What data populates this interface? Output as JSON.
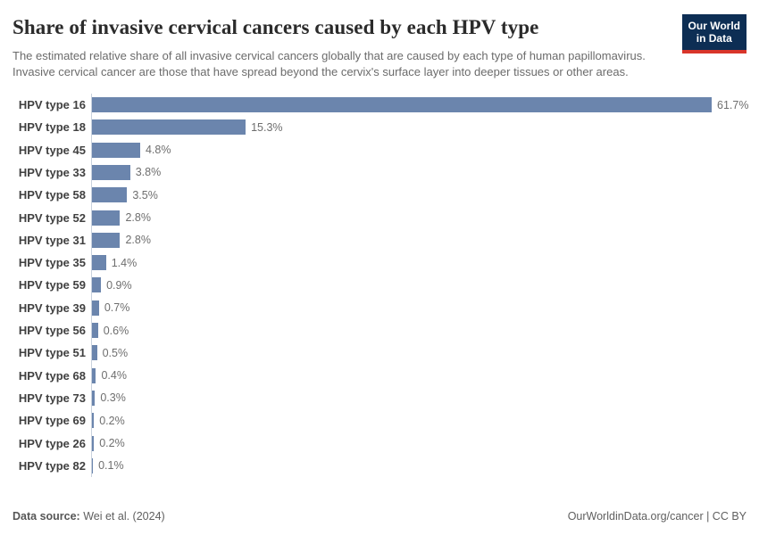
{
  "header": {
    "title": "Share of invasive cervical cancers caused by each HPV type",
    "subtitle": "The estimated relative share of all invasive cervical cancers globally that are caused by each type of human papillomavirus. Invasive cervical cancer are those that have spread beyond the cervix's surface layer into deeper tissues or other areas.",
    "logo": {
      "line1": "Our World",
      "line2": "in Data",
      "bg_color": "#0d2e54",
      "accent_color": "#d8352a"
    }
  },
  "chart_data": {
    "type": "bar",
    "orientation": "horizontal",
    "title": "Share of invasive cervical cancers caused by each HPV type",
    "categories": [
      "HPV type 16",
      "HPV type 18",
      "HPV type 45",
      "HPV type 33",
      "HPV type 58",
      "HPV type 52",
      "HPV type 31",
      "HPV type 35",
      "HPV type 59",
      "HPV type 39",
      "HPV type 56",
      "HPV type 51",
      "HPV type 68",
      "HPV type 73",
      "HPV type 69",
      "HPV type 26",
      "HPV type 82"
    ],
    "values": [
      61.7,
      15.3,
      4.8,
      3.8,
      3.5,
      2.8,
      2.8,
      1.4,
      0.9,
      0.7,
      0.6,
      0.5,
      0.4,
      0.3,
      0.2,
      0.2,
      0.1
    ],
    "value_labels": [
      "61.7%",
      "15.3%",
      "4.8%",
      "3.8%",
      "3.5%",
      "2.8%",
      "2.8%",
      "1.4%",
      "0.9%",
      "0.7%",
      "0.6%",
      "0.5%",
      "0.4%",
      "0.3%",
      "0.2%",
      "0.2%",
      "0.1%"
    ],
    "xlabel": "",
    "ylabel": "",
    "xlim": [
      0,
      65
    ],
    "grid": false,
    "legend": false,
    "bar_color": "#6b85ad",
    "axis_line_color": "#c9d2de"
  },
  "footer": {
    "source_prefix": "Data source:",
    "source_text": " Wei et al. (2024)",
    "link_text": "OurWorldinData.org/cancer | CC BY"
  }
}
